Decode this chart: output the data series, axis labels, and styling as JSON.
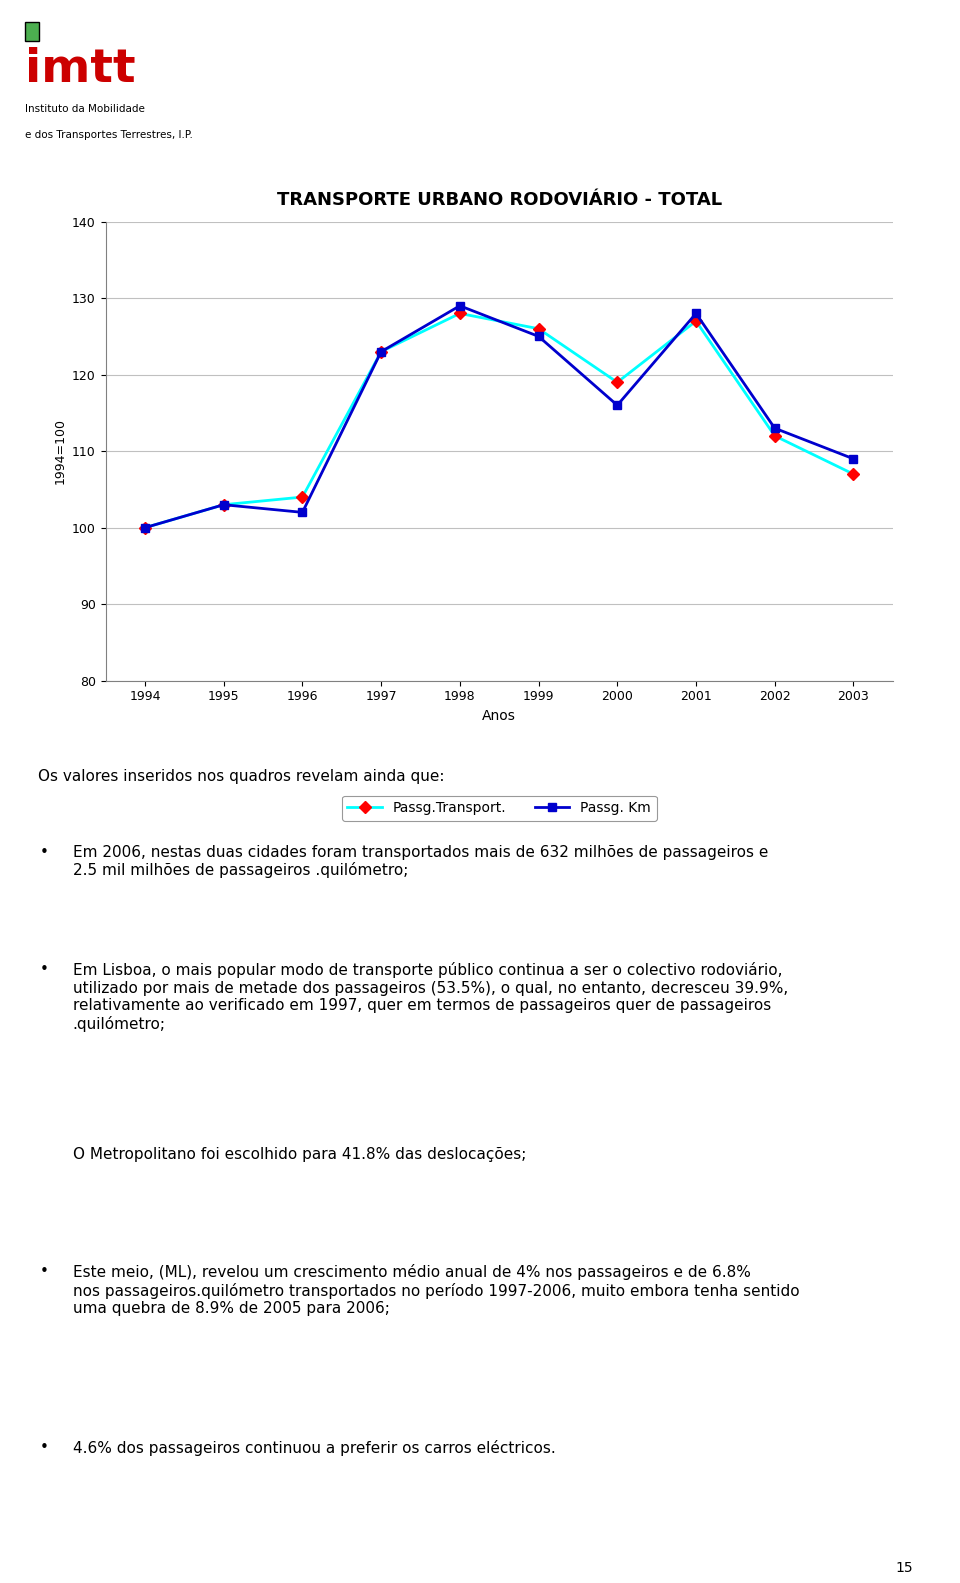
{
  "title": "TRANSPORTE URBANO RODOVIÁRIO - TOTAL",
  "years": [
    1994,
    1995,
    1996,
    1997,
    1998,
    1999,
    2000,
    2001,
    2002,
    2003
  ],
  "passg_transport": [
    100,
    103,
    104,
    123,
    128,
    126,
    119,
    127,
    112,
    107
  ],
  "passg_km": [
    100,
    103,
    102,
    123,
    129,
    125,
    116,
    128,
    113,
    109
  ],
  "ylabel": "1994=100",
  "xlabel": "Anos",
  "ylim": [
    80,
    140
  ],
  "yticks": [
    80,
    90,
    100,
    110,
    120,
    130,
    140
  ],
  "legend1": "Passg.Transport.",
  "legend2": "Passg. Km",
  "color_transport_line": "#00FFFF",
  "color_transport_marker": "#FF0000",
  "color_km_line": "#0000CD",
  "color_km_marker": "#0000CD",
  "grid_color": "#C0C0C0",
  "bg_color": "#FFFFFF",
  "page_number": "15"
}
